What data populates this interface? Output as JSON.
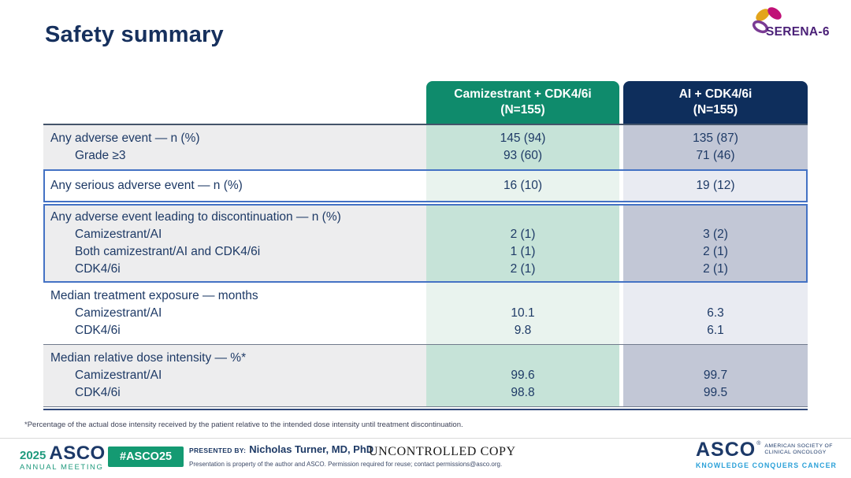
{
  "slide": {
    "title": "Safety summary",
    "footnote": "*Percentage of the actual dose intensity received by the patient relative to the intended dose intensity until treatment discontinuation."
  },
  "logo": {
    "trial_name": "SERENA-6"
  },
  "table": {
    "columns": [
      {
        "title": "Camizestrant + CDK4/6i",
        "subtitle": "(N=155)"
      },
      {
        "title": "AI + CDK4/6i",
        "subtitle": "(N=155)"
      }
    ],
    "groups": [
      {
        "highlighted": false,
        "shade": "dark",
        "rows": [
          {
            "label": "Any adverse event — n (%)",
            "indent": false,
            "values": [
              "145 (94)",
              "135 (87)"
            ]
          },
          {
            "label": "Grade ≥3",
            "indent": true,
            "values": [
              "93 (60)",
              "71 (46)"
            ]
          }
        ]
      },
      {
        "highlighted": true,
        "shade": "light",
        "rows": [
          {
            "label": "Any serious adverse event — n (%)",
            "indent": false,
            "values": [
              "16 (10)",
              "19 (12)"
            ]
          }
        ]
      },
      {
        "highlighted": true,
        "shade": "dark",
        "rows": [
          {
            "label": "Any adverse event leading to discontinuation — n (%)",
            "indent": false,
            "values": [
              "",
              ""
            ]
          },
          {
            "label": "Camizestrant/AI",
            "indent": true,
            "values": [
              "2 (1)",
              "3 (2)"
            ]
          },
          {
            "label": "Both camizestrant/AI and CDK4/6i",
            "indent": true,
            "values": [
              "1 (1)",
              "2 (1)"
            ]
          },
          {
            "label": "CDK4/6i",
            "indent": true,
            "values": [
              "2 (1)",
              "2 (1)"
            ]
          }
        ]
      },
      {
        "highlighted": false,
        "shade": "light",
        "rows": [
          {
            "label": "Median treatment exposure — months",
            "indent": false,
            "values": [
              "",
              ""
            ]
          },
          {
            "label": "Camizestrant/AI",
            "indent": true,
            "values": [
              "10.1",
              "6.3"
            ]
          },
          {
            "label": "CDK4/6i",
            "indent": true,
            "values": [
              "9.8",
              "6.1"
            ]
          }
        ]
      },
      {
        "highlighted": false,
        "shade": "dark",
        "rows": [
          {
            "label": "Median relative dose intensity — %*",
            "indent": false,
            "values": [
              "",
              ""
            ]
          },
          {
            "label": "Camizestrant/AI",
            "indent": true,
            "values": [
              "99.6",
              "99.7"
            ]
          },
          {
            "label": "CDK4/6i",
            "indent": true,
            "values": [
              "98.8",
              "99.5"
            ]
          }
        ]
      }
    ]
  },
  "footer": {
    "meeting_year": "2025",
    "meeting_org": "ASCO",
    "meeting_name": "ANNUAL MEETING",
    "hashtag": "#ASCO25",
    "presented_by_label": "PRESENTED BY:",
    "presenter": "Nicholas Turner, MD, PhD",
    "copy_notice": "UNCONTROLLED COPY",
    "permission_note": "Presentation is property of the author and ASCO. Permission required for reuse; contact permissions@asco.org.",
    "asco_logo": {
      "name": "ASCO",
      "registered_mark": "®",
      "society_line1": "AMERICAN SOCIETY OF",
      "society_line2": "CLINICAL ONCOLOGY",
      "tagline": "KNOWLEDGE CONQUERS CANCER"
    }
  },
  "colors": {
    "title_navy": "#16305d",
    "header_green": "#0f8b6c",
    "header_navy": "#0e2e5c",
    "highlight_border": "#4472c4",
    "cam_col_dark": "#c6e3d8",
    "cam_col_light": "#e9f3ee",
    "ai_col_dark": "#c2c7d6",
    "ai_col_light": "#e9ebf2",
    "label_col_gray": "#ededee",
    "asco_green": "#149a72",
    "tagline_blue": "#2aa0d8"
  }
}
